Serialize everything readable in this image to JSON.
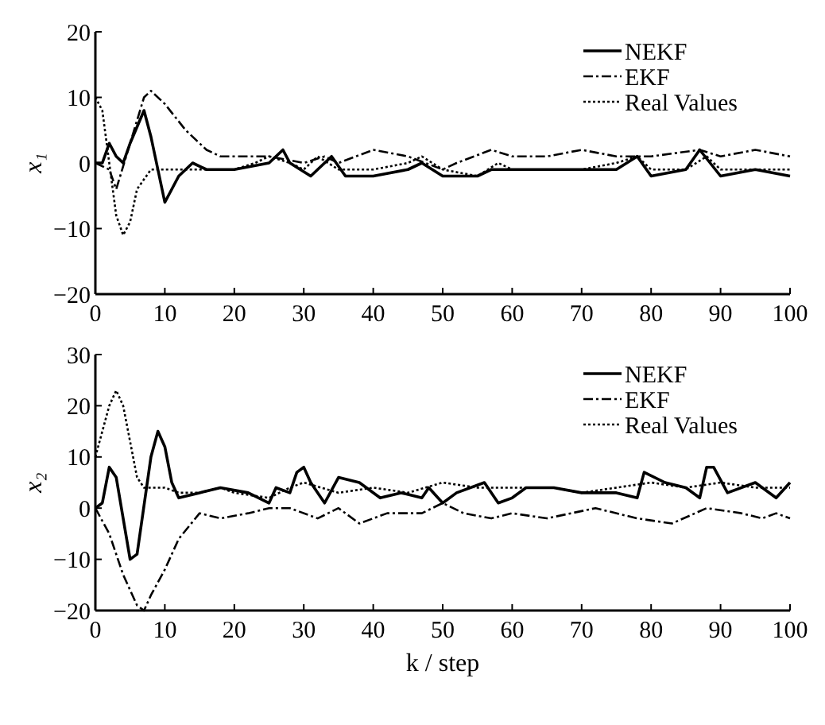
{
  "chart_data": [
    {
      "type": "line",
      "ylabel": "x₁",
      "xlim": [
        0,
        100
      ],
      "xticks": [
        0,
        10,
        20,
        30,
        40,
        50,
        60,
        70,
        80,
        90,
        100
      ],
      "ylim": [
        -20,
        20
      ],
      "yticks": [
        -20,
        -10,
        0,
        10,
        20
      ],
      "legend": "top right",
      "grid": false,
      "series": [
        {
          "name": "NEKF",
          "color": "#000000",
          "line_style": "solid",
          "x": [
            0,
            1,
            2,
            3,
            4,
            5,
            7,
            8,
            10,
            12,
            14,
            16,
            20,
            25,
            27,
            28,
            31,
            34,
            36,
            40,
            45,
            47,
            50,
            55,
            57,
            60,
            65,
            70,
            75,
            78,
            80,
            85,
            87,
            90,
            95,
            100
          ],
          "values": [
            0,
            0,
            3,
            1,
            0,
            3,
            8,
            4,
            -6,
            -2,
            0,
            -1,
            -1,
            0,
            2,
            0,
            -2,
            1,
            -2,
            -2,
            -1,
            0,
            -2,
            -2,
            -1,
            -1,
            -1,
            -1,
            -1,
            1,
            -2,
            -1,
            2,
            -2,
            -1,
            -2
          ]
        },
        {
          "name": "EKF",
          "color": "#000000",
          "line_style": "dashed",
          "x": [
            0,
            2,
            3,
            5,
            7,
            8,
            10,
            13,
            16,
            18,
            20,
            25,
            30,
            33,
            35,
            40,
            45,
            50,
            52,
            57,
            60,
            65,
            70,
            75,
            80,
            87,
            90,
            95,
            100
          ],
          "values": [
            0,
            -1,
            -4,
            3,
            10,
            11,
            9,
            5,
            2,
            1,
            1,
            1,
            0,
            1,
            0,
            2,
            1,
            -1,
            0,
            2,
            1,
            1,
            2,
            1,
            1,
            2,
            1,
            2,
            1
          ]
        },
        {
          "name": "Real Values",
          "color": "#000000",
          "line_style": "dotted",
          "x": [
            0,
            1,
            2,
            3,
            4,
            5,
            6,
            8,
            10,
            15,
            20,
            23,
            25,
            28,
            30,
            32,
            35,
            40,
            45,
            47,
            50,
            55,
            58,
            60,
            70,
            75,
            78,
            80,
            85,
            88,
            90,
            95,
            100
          ],
          "values": [
            10,
            8,
            0,
            -8,
            -11,
            -9,
            -4,
            -1,
            -1,
            -1,
            -1,
            0,
            1,
            0,
            -1,
            1,
            -1,
            -1,
            0,
            1,
            -1,
            -2,
            0,
            -1,
            -1,
            0,
            1,
            -1,
            -1,
            1,
            -1,
            -1,
            -1
          ]
        }
      ]
    },
    {
      "type": "line",
      "xlabel": "k / step",
      "ylabel": "x₂",
      "xlim": [
        0,
        100
      ],
      "xticks": [
        0,
        10,
        20,
        30,
        40,
        50,
        60,
        70,
        80,
        90,
        100
      ],
      "ylim": [
        -20,
        30
      ],
      "yticks": [
        -20,
        -10,
        0,
        10,
        20,
        30
      ],
      "legend": "top right",
      "grid": false,
      "series": [
        {
          "name": "NEKF",
          "color": "#000000",
          "line_style": "solid",
          "x": [
            0,
            1,
            2,
            3,
            5,
            6,
            8,
            9,
            10,
            11,
            12,
            15,
            18,
            22,
            25,
            26,
            28,
            29,
            30,
            31,
            33,
            35,
            38,
            41,
            44,
            47,
            48,
            50,
            52,
            56,
            58,
            60,
            62,
            66,
            70,
            75,
            78,
            79,
            82,
            85,
            87,
            88,
            89,
            91,
            95,
            98,
            100
          ],
          "values": [
            0,
            1,
            8,
            6,
            -10,
            -9,
            10,
            15,
            12,
            5,
            2,
            3,
            4,
            3,
            1,
            4,
            3,
            7,
            8,
            5,
            1,
            6,
            5,
            2,
            3,
            2,
            4,
            1,
            3,
            5,
            1,
            2,
            4,
            4,
            3,
            3,
            2,
            7,
            5,
            4,
            2,
            8,
            8,
            3,
            5,
            2,
            5
          ]
        },
        {
          "name": "EKF",
          "color": "#000000",
          "line_style": "dashed",
          "x": [
            0,
            2,
            4,
            6,
            7,
            8,
            10,
            12,
            15,
            18,
            22,
            25,
            28,
            32,
            35,
            38,
            42,
            47,
            50,
            53,
            57,
            60,
            65,
            72,
            78,
            83,
            88,
            93,
            96,
            98,
            100
          ],
          "values": [
            0,
            -5,
            -13,
            -19,
            -20,
            -17,
            -12,
            -6,
            -1,
            -2,
            -1,
            0,
            0,
            -2,
            0,
            -3,
            -1,
            -1,
            1,
            -1,
            -2,
            -1,
            -2,
            0,
            -2,
            -3,
            0,
            -1,
            -2,
            -1,
            -2
          ]
        },
        {
          "name": "Real Values",
          "color": "#000000",
          "line_style": "dotted",
          "x": [
            0,
            1,
            2,
            3,
            4,
            5,
            6,
            7,
            10,
            12,
            15,
            18,
            20,
            25,
            28,
            30,
            35,
            40,
            45,
            50,
            55,
            60,
            66,
            70,
            75,
            80,
            85,
            90,
            95,
            100
          ],
          "values": [
            10,
            15,
            20,
            23,
            20,
            13,
            6,
            4,
            4,
            3,
            3,
            4,
            3,
            2,
            4,
            5,
            3,
            4,
            3,
            5,
            4,
            4,
            4,
            3,
            4,
            5,
            4,
            5,
            4,
            4
          ]
        }
      ]
    }
  ]
}
